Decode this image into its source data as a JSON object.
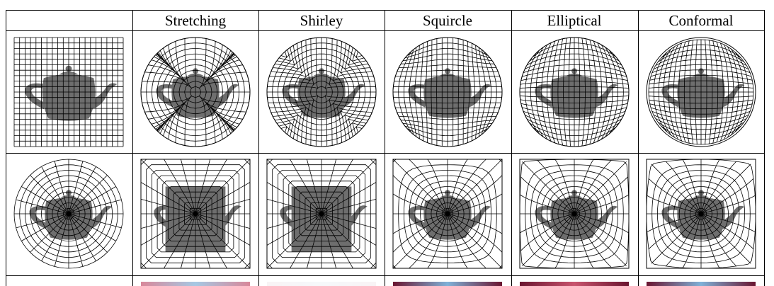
{
  "figure": {
    "columns": [
      {
        "label": ""
      },
      {
        "label": "Stretching"
      },
      {
        "label": "Shirley"
      },
      {
        "label": "Squircle"
      },
      {
        "label": "Elliptical"
      },
      {
        "label": "Conformal"
      }
    ],
    "rows": [
      {
        "id": "square-to-disc"
      },
      {
        "id": "disc-to-square"
      },
      {
        "id": "distortion-heatmap"
      }
    ],
    "colors": {
      "teapot_fill": "#6e6e6e",
      "grid_line": "#000000",
      "heat_red": "#c8546e",
      "heat_blue": "#7fb1d8",
      "heat_dark": "#6a1530"
    }
  }
}
